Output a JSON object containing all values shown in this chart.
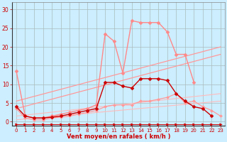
{
  "background_color": "#cceeff",
  "grid_color": "#aabbbb",
  "xlabel": "Vent moyen/en rafales ( km/h )",
  "xlabel_color": "#cc0000",
  "tick_color": "#cc0000",
  "ylim": [
    -1,
    32
  ],
  "xlim": [
    -0.5,
    23.5
  ],
  "yticks": [
    0,
    5,
    10,
    15,
    20,
    25,
    30
  ],
  "xticks": [
    0,
    1,
    2,
    3,
    4,
    5,
    6,
    7,
    8,
    9,
    10,
    11,
    12,
    13,
    14,
    15,
    16,
    17,
    18,
    19,
    20,
    21,
    22,
    23
  ],
  "series": [
    {
      "name": "pink_rafales_top",
      "x": [
        0,
        1,
        2,
        3,
        4,
        5,
        6,
        7,
        8,
        9,
        10,
        11,
        12,
        13,
        14,
        15,
        16,
        17,
        18,
        19,
        20
      ],
      "y": [
        13.5,
        1.5,
        1.0,
        1.0,
        1.5,
        2.0,
        2.5,
        3.0,
        3.5,
        4.5,
        23.5,
        21.5,
        13.0,
        27.0,
        26.5,
        26.5,
        26.5,
        24.0,
        18.0,
        18.0,
        10.5
      ],
      "color": "#ff8888",
      "marker": "D",
      "markersize": 2.5,
      "linewidth": 1.0,
      "zorder": 5
    },
    {
      "name": "dark_red_moyen",
      "x": [
        0,
        1,
        2,
        3,
        4,
        5,
        6,
        7,
        8,
        9,
        10,
        11,
        12,
        13,
        14,
        15,
        16,
        17,
        18,
        19,
        20,
        21,
        22
      ],
      "y": [
        4.0,
        1.5,
        1.0,
        1.0,
        1.2,
        1.5,
        2.0,
        2.5,
        3.0,
        3.5,
        10.5,
        10.5,
        9.5,
        9.0,
        11.5,
        11.5,
        11.5,
        11.0,
        7.5,
        5.5,
        4.0,
        3.5,
        1.5
      ],
      "color": "#cc0000",
      "marker": "D",
      "markersize": 2.5,
      "linewidth": 1.0,
      "zorder": 6
    },
    {
      "name": "linear_top1",
      "x": [
        0,
        23
      ],
      "y": [
        5.5,
        20.0
      ],
      "color": "#ff9999",
      "marker": null,
      "linewidth": 0.9,
      "zorder": 3
    },
    {
      "name": "linear_top2",
      "x": [
        0,
        23
      ],
      "y": [
        3.5,
        18.0
      ],
      "color": "#ff9999",
      "marker": null,
      "linewidth": 0.9,
      "zorder": 3
    },
    {
      "name": "linear_low1",
      "x": [
        0,
        23
      ],
      "y": [
        1.5,
        7.5
      ],
      "color": "#ffbbbb",
      "marker": null,
      "linewidth": 0.8,
      "zorder": 3
    },
    {
      "name": "linear_low2",
      "x": [
        0,
        23
      ],
      "y": [
        0.5,
        5.5
      ],
      "color": "#ffbbbb",
      "marker": null,
      "linewidth": 0.8,
      "zorder": 3
    },
    {
      "name": "pink_medium_curve",
      "x": [
        0,
        1,
        2,
        3,
        4,
        5,
        6,
        7,
        8,
        9,
        10,
        11,
        12,
        13,
        14,
        15,
        16,
        17,
        18,
        19,
        20,
        21,
        22,
        23
      ],
      "y": [
        3.5,
        1.0,
        0.5,
        0.5,
        1.0,
        1.2,
        1.5,
        2.0,
        2.5,
        3.0,
        4.0,
        4.5,
        4.5,
        4.5,
        5.5,
        5.5,
        6.0,
        6.5,
        7.5,
        5.0,
        5.5,
        4.0,
        3.0,
        1.5
      ],
      "color": "#ff9999",
      "marker": "D",
      "markersize": 2.0,
      "linewidth": 0.9,
      "zorder": 4
    },
    {
      "name": "arrow_line",
      "x": [
        0,
        1,
        2,
        3,
        4,
        5,
        6,
        7,
        8,
        9,
        10,
        11,
        12,
        13,
        14,
        15,
        16,
        17,
        18,
        19,
        20,
        21,
        22,
        23
      ],
      "y": [
        -0.6,
        -0.6,
        -0.6,
        -0.6,
        -0.6,
        -0.6,
        -0.6,
        -0.6,
        -0.6,
        -0.6,
        -0.6,
        -0.6,
        -0.6,
        -0.6,
        -0.6,
        -0.6,
        -0.6,
        -0.6,
        -0.6,
        -0.6,
        -0.6,
        -0.6,
        -0.6,
        -0.6
      ],
      "color": "#cc0000",
      "marker": ">",
      "markersize": 2.5,
      "linewidth": 0.7,
      "zorder": 4
    }
  ]
}
